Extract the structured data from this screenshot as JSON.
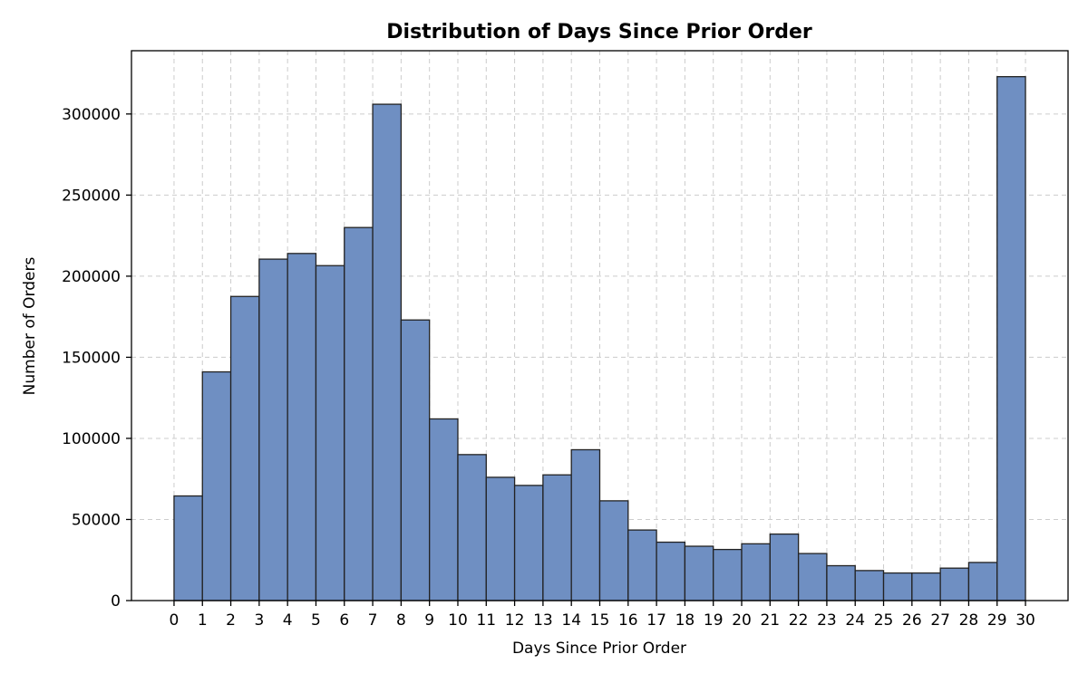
{
  "chart_data": {
    "type": "bar",
    "title": "Distribution of Days Since Prior Order",
    "xlabel": "Days Since Prior Order",
    "ylabel": "Number of Orders",
    "bin_edges": [
      0,
      1,
      2,
      3,
      4,
      5,
      6,
      7,
      8,
      9,
      10,
      11,
      12,
      13,
      14,
      15,
      16,
      17,
      18,
      19,
      20,
      21,
      22,
      23,
      24,
      25,
      26,
      27,
      28,
      29,
      30
    ],
    "values": [
      64500,
      141000,
      187500,
      210500,
      214000,
      206500,
      230000,
      306000,
      173000,
      112000,
      90000,
      76000,
      71000,
      77500,
      93000,
      61500,
      43500,
      36000,
      33500,
      31500,
      35000,
      41000,
      29000,
      21500,
      18500,
      17000,
      17000,
      20000,
      23500,
      323000
    ],
    "x_ticks": [
      "0",
      "1",
      "2",
      "3",
      "4",
      "5",
      "6",
      "7",
      "8",
      "9",
      "10",
      "11",
      "12",
      "13",
      "14",
      "15",
      "16",
      "17",
      "18",
      "19",
      "20",
      "21",
      "22",
      "23",
      "24",
      "25",
      "26",
      "27",
      "28",
      "29",
      "30"
    ],
    "y_ticks": [
      0,
      50000,
      100000,
      150000,
      200000,
      250000,
      300000
    ],
    "y_tick_labels": [
      "0",
      "50000",
      "100000",
      "150000",
      "200000",
      "250000",
      "300000"
    ],
    "xlim": [
      -1.5,
      31.5
    ],
    "ylim": [
      0,
      339000
    ],
    "grid": true,
    "colors": {
      "bar_fill": "#6f8fc2",
      "bar_edge": "#222222",
      "grid": "#cccccc"
    }
  }
}
